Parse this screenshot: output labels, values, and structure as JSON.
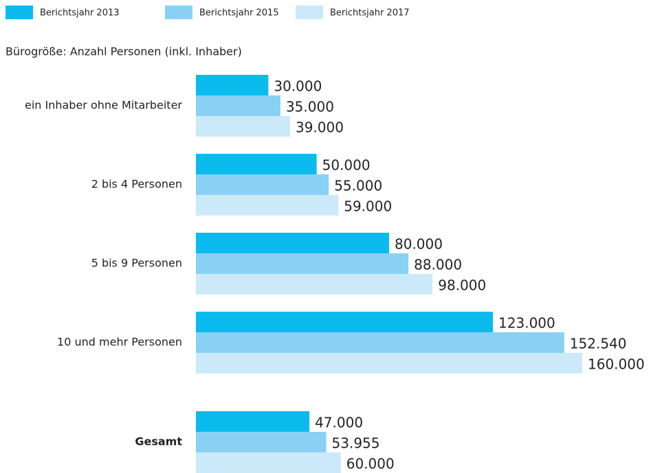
{
  "chart_data": {
    "type": "hbar",
    "subtitle": "Bürogröße: Anzahl Personen (inkl. Inhaber)",
    "categories": [
      "ein Inhaber ohne Mitarbeiter",
      "2 bis 4 Personen",
      "5 bis 9 Personen",
      "10 und mehr Personen",
      "Gesamt"
    ],
    "xlim": [
      0,
      160000
    ],
    "legend": "top",
    "series": [
      {
        "name": "Berichtsjahr 2013",
        "color": "#0cbbee",
        "values": [
          30000,
          50000,
          80000,
          123000,
          47000
        ],
        "value_labels": [
          "30.000",
          "50.000",
          "80.000",
          "123.000",
          "47.000"
        ]
      },
      {
        "name": "Berichtsjahr 2015",
        "color": "#88d1f5",
        "values": [
          35000,
          55000,
          88000,
          152540,
          53955
        ],
        "value_labels": [
          "35.000",
          "55.000",
          "88.000",
          "152.540",
          "53.955"
        ]
      },
      {
        "name": "Berichtsjahr 2017",
        "color": "#cce9fa",
        "values": [
          39000,
          59000,
          98000,
          160000,
          60000
        ],
        "value_labels": [
          "39.000",
          "59.000",
          "98.000",
          "160.000",
          "60.000"
        ]
      }
    ]
  }
}
